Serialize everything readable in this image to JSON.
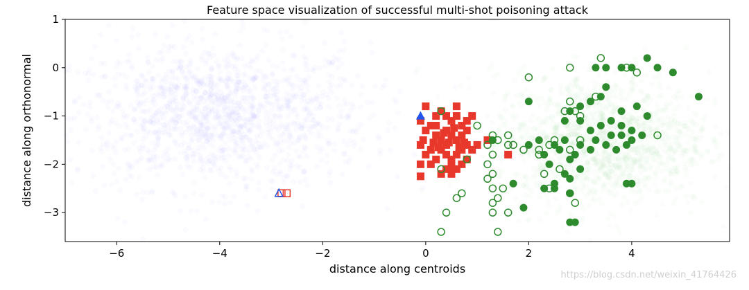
{
  "chart_data": {
    "type": "scatter",
    "title": "Feature space visualization of successful multi-shot poisoning attack",
    "xlabel": "distance along centroids",
    "ylabel": "distance along orthonormal",
    "xlim": [
      -7,
      5.9
    ],
    "ylim": [
      -3.6,
      1.0
    ],
    "xticks": [
      -6,
      -4,
      -2,
      0,
      2,
      4
    ],
    "xtick_labels": [
      "−6",
      "−4",
      "−2",
      "0",
      "2",
      "4"
    ],
    "yticks": [
      1,
      0,
      -1,
      -2,
      -3
    ],
    "ytick_labels": [
      "1",
      "0",
      "−1",
      "−2",
      "−3"
    ],
    "colors": {
      "base_cloud": "#6b7bff",
      "target_cloud": "#7fbf7f",
      "poison": "#e8382b",
      "target": "#2d8a2d",
      "base_marker": "#2255ee"
    },
    "series": [
      {
        "marker": "square-filled",
        "points": [
          [
            -0.1,
            -1.1
          ],
          [
            0.0,
            -0.8
          ],
          [
            0.1,
            -1.2
          ],
          [
            0.2,
            -1.0
          ],
          [
            0.3,
            -0.9
          ],
          [
            0.4,
            -1.3
          ],
          [
            0.5,
            -1.1
          ],
          [
            0.6,
            -1.0
          ],
          [
            0.7,
            -1.2
          ],
          [
            0.8,
            -1.1
          ],
          [
            0.9,
            -1.0
          ],
          [
            0.2,
            -1.4
          ],
          [
            0.3,
            -1.5
          ],
          [
            0.4,
            -1.6
          ],
          [
            0.5,
            -1.4
          ],
          [
            0.6,
            -1.5
          ],
          [
            0.7,
            -1.7
          ],
          [
            0.8,
            -1.6
          ],
          [
            0.1,
            -1.7
          ],
          [
            0.0,
            -1.8
          ],
          [
            -0.1,
            -1.6
          ],
          [
            0.2,
            -1.9
          ],
          [
            0.3,
            -1.7
          ],
          [
            0.4,
            -1.8
          ],
          [
            0.5,
            -1.9
          ],
          [
            0.6,
            -1.8
          ],
          [
            0.7,
            -2.0
          ],
          [
            0.8,
            -1.9
          ],
          [
            0.9,
            -1.7
          ],
          [
            1.0,
            -1.6
          ],
          [
            0.1,
            -2.0
          ],
          [
            -0.1,
            -2.0
          ],
          [
            0.4,
            -2.1
          ],
          [
            0.6,
            -2.1
          ],
          [
            0.5,
            -2.2
          ],
          [
            0.3,
            -2.2
          ],
          [
            0.7,
            -1.4
          ],
          [
            0.8,
            -1.3
          ],
          [
            0.2,
            -1.2
          ],
          [
            0.4,
            -1.0
          ],
          [
            0.6,
            -0.8
          ],
          [
            0.0,
            -1.3
          ],
          [
            -0.05,
            -1.5
          ],
          [
            0.35,
            -1.35
          ],
          [
            0.55,
            -1.25
          ],
          [
            0.45,
            -1.55
          ],
          [
            0.25,
            -1.65
          ],
          [
            0.65,
            -1.65
          ],
          [
            0.15,
            -1.55
          ],
          [
            0.75,
            -1.55
          ],
          [
            -0.1,
            -2.25
          ],
          [
            0.5,
            -2.05
          ],
          [
            1.2,
            -1.5
          ],
          [
            1.6,
            -1.8
          ]
        ]
      },
      {
        "marker": "circle-filled",
        "points": [
          [
            3.3,
            0.0
          ],
          [
            3.5,
            0.0
          ],
          [
            3.8,
            0.0
          ],
          [
            4.0,
            0.0
          ],
          [
            4.3,
            0.2
          ],
          [
            4.5,
            0.0
          ],
          [
            4.8,
            -0.1
          ],
          [
            5.3,
            -0.6
          ],
          [
            3.5,
            -0.4
          ],
          [
            3.4,
            -0.6
          ],
          [
            2.0,
            -0.7
          ],
          [
            2.8,
            -0.9
          ],
          [
            3.0,
            -0.8
          ],
          [
            3.2,
            -0.7
          ],
          [
            3.8,
            -0.9
          ],
          [
            4.1,
            -0.8
          ],
          [
            4.3,
            -1.0
          ],
          [
            2.7,
            -1.1
          ],
          [
            3.0,
            -1.1
          ],
          [
            3.2,
            -1.3
          ],
          [
            3.4,
            -1.2
          ],
          [
            3.6,
            -1.1
          ],
          [
            3.8,
            -1.2
          ],
          [
            4.0,
            -1.3
          ],
          [
            2.2,
            -1.5
          ],
          [
            2.5,
            -1.6
          ],
          [
            2.7,
            -1.5
          ],
          [
            3.0,
            -1.6
          ],
          [
            3.3,
            -1.5
          ],
          [
            3.6,
            -1.4
          ],
          [
            3.8,
            -1.4
          ],
          [
            4.0,
            -1.5
          ],
          [
            4.2,
            -1.4
          ],
          [
            2.0,
            -1.6
          ],
          [
            2.3,
            -1.8
          ],
          [
            2.6,
            -1.7
          ],
          [
            2.9,
            -1.8
          ],
          [
            3.2,
            -1.7
          ],
          [
            3.5,
            -1.6
          ],
          [
            3.7,
            -1.7
          ],
          [
            3.9,
            -1.6
          ],
          [
            2.4,
            -2.0
          ],
          [
            2.8,
            -1.9
          ],
          [
            3.0,
            -2.1
          ],
          [
            2.7,
            -2.2
          ],
          [
            2.8,
            -2.3
          ],
          [
            2.5,
            -2.4
          ],
          [
            1.3,
            -1.5
          ],
          [
            1.7,
            -2.4
          ],
          [
            2.3,
            -2.5
          ],
          [
            2.5,
            -2.5
          ],
          [
            2.8,
            -2.6
          ],
          [
            1.9,
            -2.9
          ],
          [
            2.8,
            -3.2
          ],
          [
            2.9,
            -3.2
          ],
          [
            3.9,
            -2.4
          ],
          [
            4.0,
            -2.4
          ]
        ]
      },
      {
        "marker": "circle-open",
        "points": [
          [
            3.4,
            0.2
          ],
          [
            3.9,
            0.0
          ],
          [
            4.1,
            -0.1
          ],
          [
            2.8,
            0.0
          ],
          [
            2.0,
            -0.2
          ],
          [
            3.3,
            -0.6
          ],
          [
            2.8,
            -0.7
          ],
          [
            2.7,
            -0.9
          ],
          [
            2.9,
            -0.9
          ],
          [
            3.0,
            -1.0
          ],
          [
            0.3,
            -0.9
          ],
          [
            1.0,
            -1.2
          ],
          [
            1.3,
            -1.4
          ],
          [
            1.6,
            -1.4
          ],
          [
            1.7,
            -1.6
          ],
          [
            1.9,
            -1.7
          ],
          [
            1.6,
            -1.6
          ],
          [
            1.4,
            -1.5
          ],
          [
            1.2,
            -1.6
          ],
          [
            2.2,
            -1.7
          ],
          [
            2.4,
            -1.6
          ],
          [
            2.5,
            -1.5
          ],
          [
            2.8,
            -1.7
          ],
          [
            3.0,
            -1.5
          ],
          [
            4.5,
            -1.4
          ],
          [
            1.3,
            -1.8
          ],
          [
            2.2,
            -1.8
          ],
          [
            2.6,
            -2.1
          ],
          [
            0.3,
            -2.1
          ],
          [
            0.8,
            -1.9
          ],
          [
            1.2,
            -2.0
          ],
          [
            1.3,
            -2.2
          ],
          [
            1.2,
            -2.3
          ],
          [
            2.3,
            -2.2
          ],
          [
            1.3,
            -2.5
          ],
          [
            1.5,
            -2.5
          ],
          [
            0.7,
            -2.6
          ],
          [
            0.6,
            -2.7
          ],
          [
            1.4,
            -2.7
          ],
          [
            2.4,
            -2.5
          ],
          [
            2.8,
            -2.6
          ],
          [
            2.9,
            -2.8
          ],
          [
            1.3,
            -2.8
          ],
          [
            0.4,
            -3.0
          ],
          [
            1.6,
            -3.0
          ],
          [
            1.3,
            -3.0
          ],
          [
            0.3,
            -3.4
          ],
          [
            1.4,
            -3.4
          ]
        ]
      },
      {
        "marker": "triangle-filled",
        "points": [
          [
            -0.1,
            -1.0
          ]
        ]
      },
      {
        "marker": "square-open",
        "points": [
          [
            -2.8,
            -2.6
          ],
          [
            -2.7,
            -2.6
          ]
        ]
      },
      {
        "marker": "triangle-open",
        "points": [
          [
            -2.85,
            -2.6
          ]
        ]
      }
    ],
    "clouds": [
      {
        "center": [
          -4.0,
          -1.0
        ],
        "spread": [
          1.45,
          0.75
        ],
        "color_key": "base_cloud"
      },
      {
        "center": [
          3.4,
          -1.5
        ],
        "spread": [
          1.05,
          0.7
        ],
        "color_key": "target_cloud"
      }
    ],
    "watermark": "https://blog.csdn.net/weixin_41764426",
    "grid": false,
    "legend": "none"
  }
}
